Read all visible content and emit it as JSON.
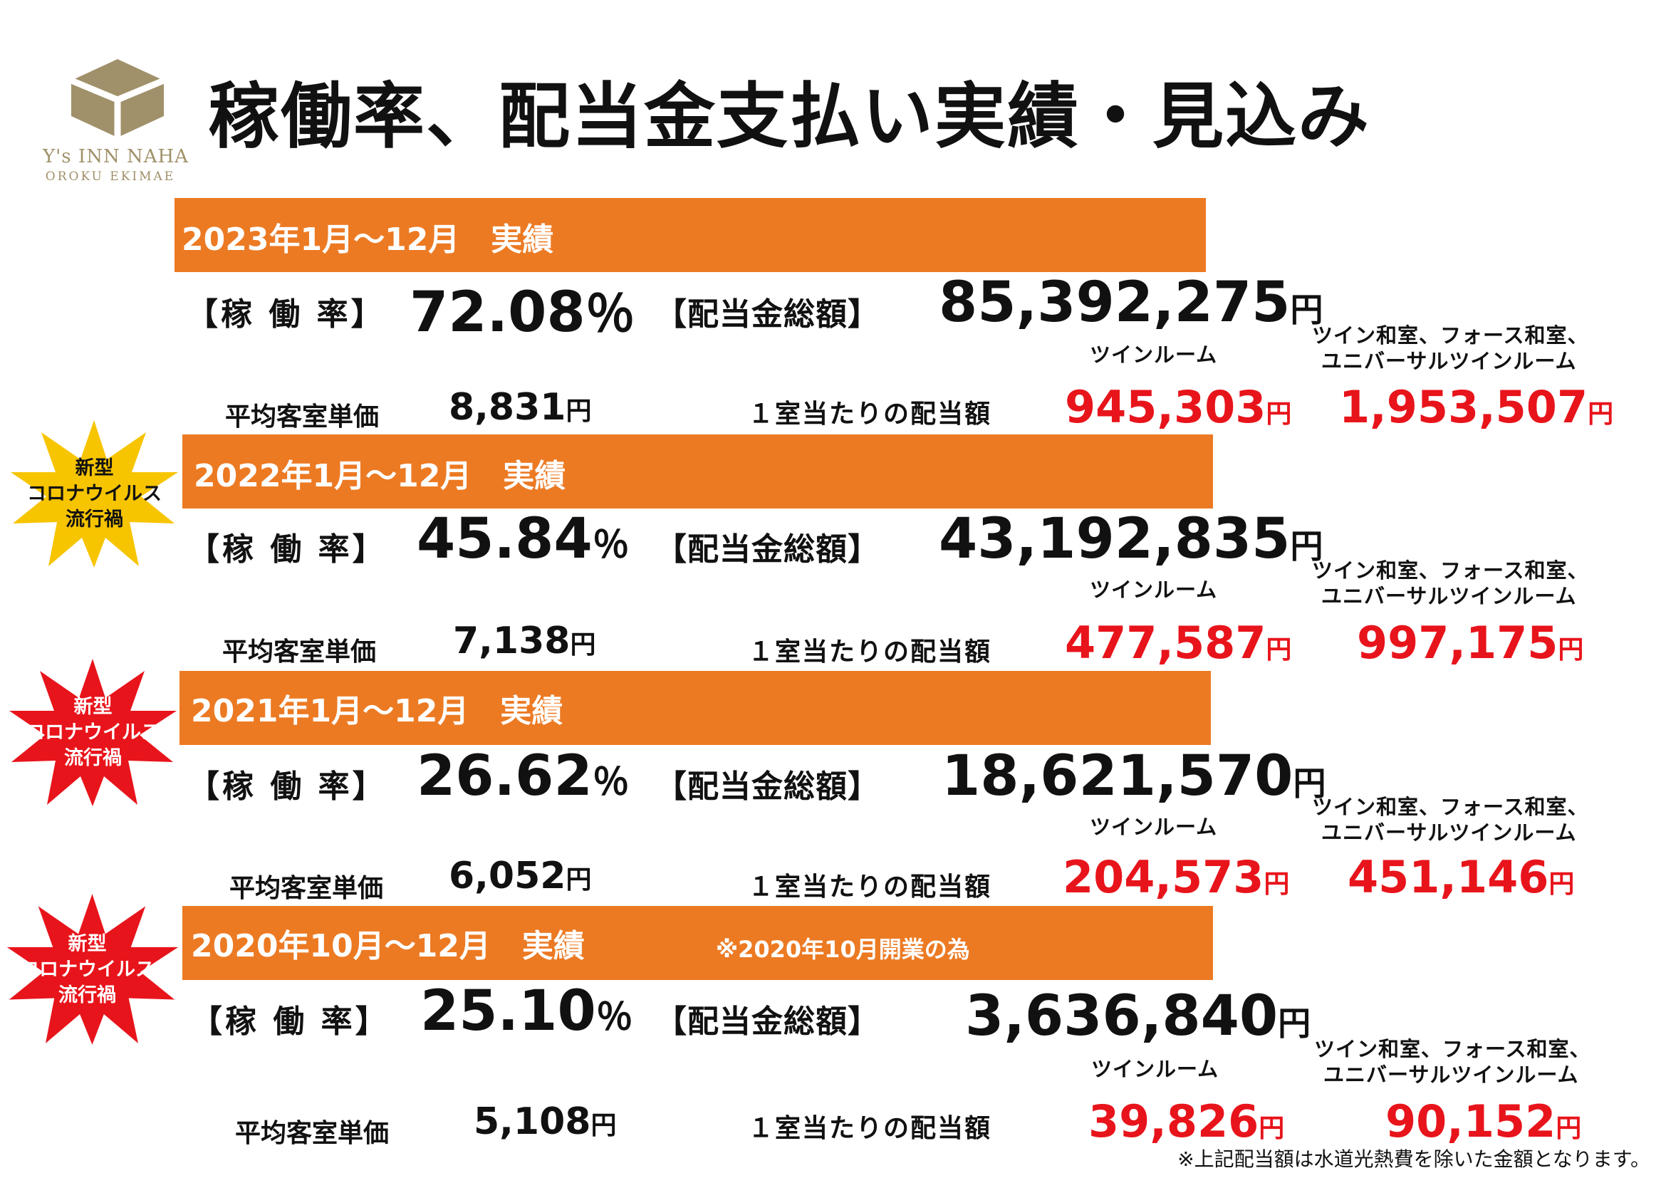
{
  "logo": {
    "line1": "Y's INN NAHA",
    "line2": "OROKU EKIMAE",
    "color": "#a0916a"
  },
  "title": "稼働率、配当金支払い実績・見込み",
  "colors": {
    "bar": "#ec7a23",
    "accent_red": "#e8141b",
    "badge_yellow": "#f7c400",
    "badge_red": "#e8141b"
  },
  "labels": {
    "occupancy": "【稼 働 率】",
    "dividend_total": "【配当金総額】",
    "avg_price": "平均客室単価",
    "per_room": "１室当たりの配当額",
    "twin_room": "ツインルーム",
    "other_rooms_line1": "ツイン和室、フォース和室、",
    "other_rooms_line2": "ユニバーサルツインルーム",
    "yen": "円",
    "percent": "％"
  },
  "badge": {
    "line1": "新型",
    "line2": "コロナウイルス",
    "line3": "流行禍"
  },
  "periods": [
    {
      "header": "2023年1月～12月　実績",
      "occupancy": "72.08",
      "dividend_total": "85,392,275",
      "avg_price": "8,831",
      "twin_per_room": "945,303",
      "other_per_room": "1,953,507",
      "badge": false
    },
    {
      "header": "2022年1月～12月　実績",
      "occupancy": "45.84",
      "dividend_total": "43,192,835",
      "avg_price": "7,138",
      "twin_per_room": "477,587",
      "other_per_room": "997,175",
      "badge": true,
      "badge_color": "yellow"
    },
    {
      "header": "2021年1月～12月　実績",
      "occupancy": "26.62",
      "dividend_total": "18,621,570",
      "avg_price": "6,052",
      "twin_per_room": "204,573",
      "other_per_room": "451,146",
      "badge": true,
      "badge_color": "red"
    },
    {
      "header": "2020年10月～12月　実績",
      "note": "※2020年10月開業の為",
      "occupancy": "25.10",
      "dividend_total": "3,636,840",
      "avg_price": "5,108",
      "twin_per_room": "39,826",
      "other_per_room": "90,152",
      "badge": true,
      "badge_color": "red"
    }
  ],
  "footnote": "※上記配当額は水道光熱費を除いた金額となります。"
}
